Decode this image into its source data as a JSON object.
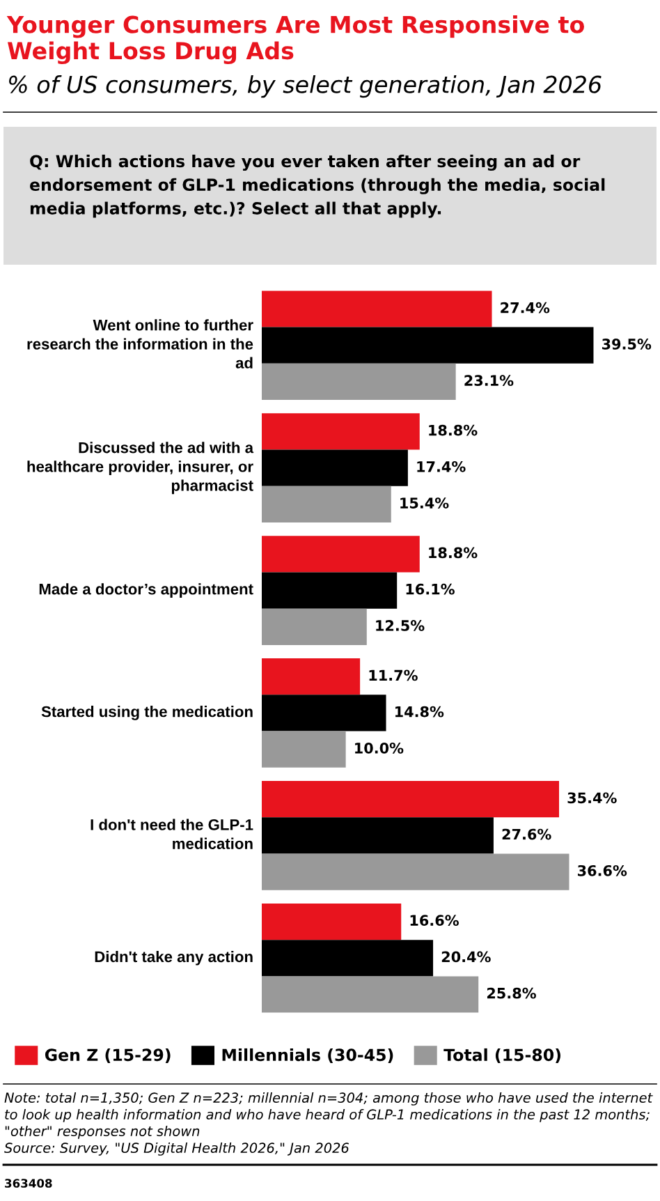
{
  "chart_data": {
    "type": "bar",
    "orientation": "horizontal",
    "title": "Younger Consumers Are Most Responsive to Weight Loss Drug Ads",
    "subtitle": "% of US consumers, by select generation, Jan 2026",
    "categories": [
      "Went online to further research the information in the ad",
      "Discussed the ad with a healthcare provider, insurer, or pharmacist",
      "Made a doctor’s appointment",
      "Started using the medication",
      "I don't need the GLP-1 medication",
      "Didn't take any action"
    ],
    "series": [
      {
        "name": "Gen Z (15-29)",
        "color": "#e8141e",
        "values": [
          27.4,
          18.8,
          18.8,
          11.7,
          35.4,
          16.6
        ],
        "value_labels": [
          "27.4%",
          "18.8%",
          "18.8%",
          "11.7%",
          "35.4%",
          "16.6%"
        ]
      },
      {
        "name": "Millennials (30-45)",
        "color": "#000000",
        "values": [
          39.5,
          17.4,
          16.1,
          14.8,
          27.6,
          20.4
        ],
        "value_labels": [
          "39.5%",
          "17.4%",
          "16.1%",
          "14.8%",
          "27.6%",
          "20.4%"
        ]
      },
      {
        "name": "Total (15-80)",
        "color": "#999999",
        "values": [
          23.1,
          15.4,
          12.5,
          10.0,
          36.6,
          25.8
        ],
        "value_labels": [
          "23.1%",
          "15.4%",
          "12.5%",
          "10.0%",
          "36.6%",
          "25.8%"
        ]
      }
    ],
    "legend": "bottom",
    "annotations": [
      "Q: Which actions have you ever taken after seeing an ad or endorsement of GLP-1 medications (through the media, social media platforms, etc.)? Select all that apply.",
      "Note: total n=1,350; Gen Z n=223; millennial n=304; among those who have used the internet to look up health information and who have heard of GLP-1 medications in the past 12 months; \"other\" responses not shown",
      "Source: Survey, \"US Digital Health 2026,\" Jan 2026",
      "363408"
    ]
  }
}
